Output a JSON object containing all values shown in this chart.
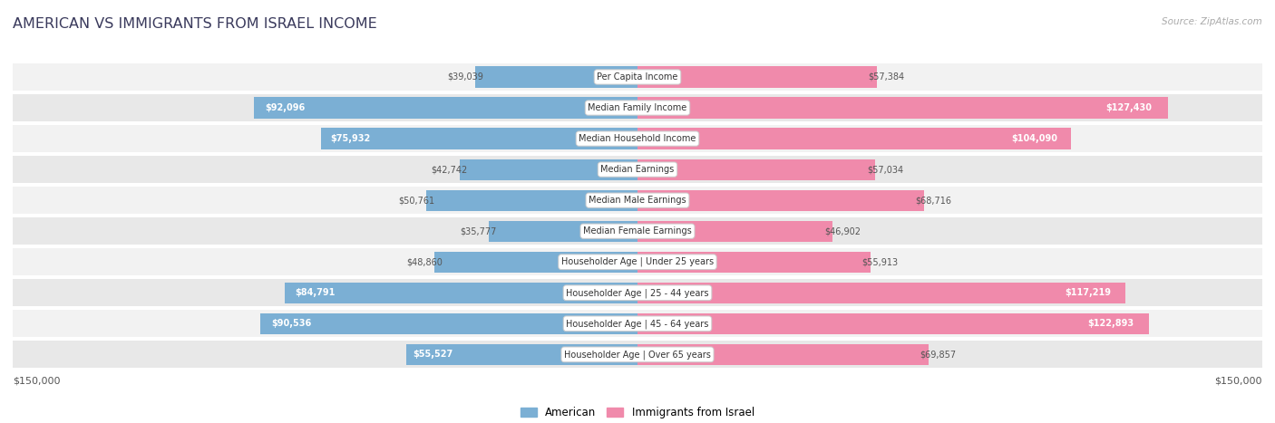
{
  "title": "AMERICAN VS IMMIGRANTS FROM ISRAEL INCOME",
  "source": "Source: ZipAtlas.com",
  "categories": [
    "Per Capita Income",
    "Median Family Income",
    "Median Household Income",
    "Median Earnings",
    "Median Male Earnings",
    "Median Female Earnings",
    "Householder Age | Under 25 years",
    "Householder Age | 25 - 44 years",
    "Householder Age | 45 - 64 years",
    "Householder Age | Over 65 years"
  ],
  "american_values": [
    39039,
    92096,
    75932,
    42742,
    50761,
    35777,
    48860,
    84791,
    90536,
    55527
  ],
  "israel_values": [
    57384,
    127430,
    104090,
    57034,
    68716,
    46902,
    55913,
    117219,
    122893,
    69857
  ],
  "american_labels": [
    "$39,039",
    "$92,096",
    "$75,932",
    "$42,742",
    "$50,761",
    "$35,777",
    "$48,860",
    "$84,791",
    "$90,536",
    "$55,527"
  ],
  "israel_labels": [
    "$57,384",
    "$127,430",
    "$104,090",
    "$57,034",
    "$68,716",
    "$46,902",
    "$55,913",
    "$117,219",
    "$122,893",
    "$69,857"
  ],
  "max_value": 150000,
  "american_color": "#7bafd4",
  "israel_color": "#f08aab",
  "american_legend_color": "#7bafd4",
  "israel_legend_color": "#f08aab",
  "row_colors": [
    "#f2f2f2",
    "#e8e8e8"
  ],
  "legend_american": "American",
  "legend_israel": "Immigrants from Israel",
  "bottom_left_label": "$150,000",
  "bottom_right_label": "$150,000",
  "title_color": "#3a3a5c",
  "source_color": "#aaaaaa",
  "label_inside_color": "white",
  "label_outside_color": "#555555",
  "am_inside_threshold": 55000,
  "is_inside_threshold": 70000,
  "center_label_color": "#333333",
  "center_box_edge": "#cccccc",
  "bar_height": 0.68
}
